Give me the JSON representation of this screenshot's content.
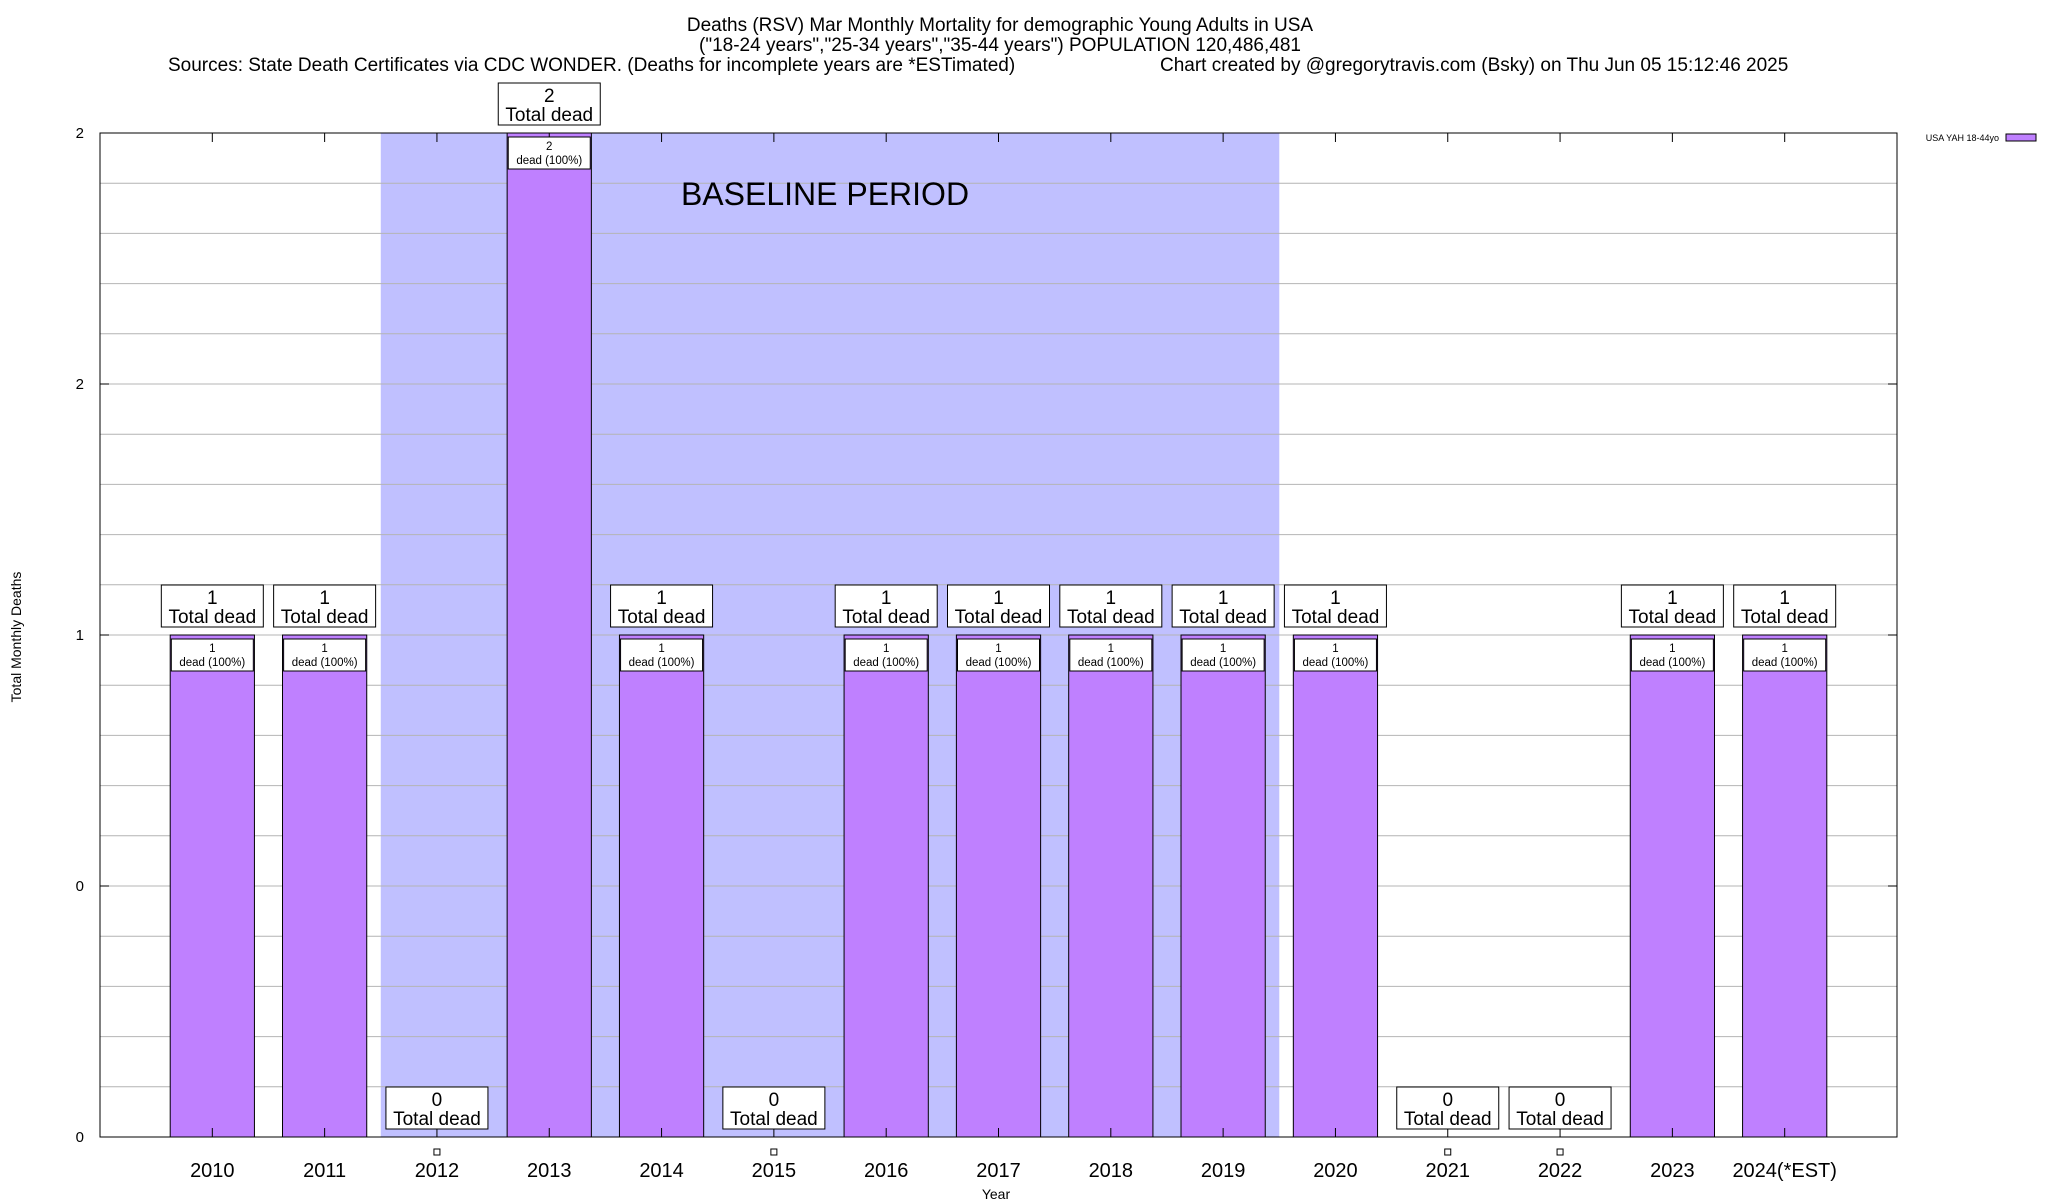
{
  "chart_data": {
    "type": "bar",
    "title_lines": [
      "Deaths (RSV) Mar Monthly Mortality for demographic Young Adults in USA",
      "(\"18-24 years\",\"25-34 years\",\"35-44 years\") POPULATION 120,486,481"
    ],
    "sources_text": "Sources: State Death Certificates via CDC WONDER. (Deaths for incomplete years are *ESTimated)",
    "credit_text": "Chart created by @gregorytravis.com (Bsky) on Thu Jun 05 15:12:46 2025",
    "xlabel": "Year",
    "ylabel": "Total Monthly Deaths",
    "categories": [
      "2010",
      "2011",
      "2012",
      "2013",
      "2014",
      "2015",
      "2016",
      "2017",
      "2018",
      "2019",
      "2020",
      "2021",
      "2022",
      "2023",
      "2024(*EST)"
    ],
    "series": [
      {
        "name": "USA YAH 18-44yo",
        "values": [
          1,
          1,
          0,
          2,
          1,
          0,
          1,
          1,
          1,
          1,
          1,
          0,
          0,
          1,
          1
        ],
        "color": "#bf80ff"
      }
    ],
    "ylim": [
      0,
      2
    ],
    "y_ticks": [
      0,
      0.5,
      1,
      1.5,
      2
    ],
    "y_tick_labels": [
      "0",
      "0",
      "1",
      "2",
      "2"
    ],
    "grid": true,
    "total_label_suffix": "Total dead",
    "inner_label_suffix": "dead (100%)",
    "baseline_period": {
      "label": "BASELINE PERIOD",
      "from": "2012",
      "to": "2019",
      "color": "#c0c0ff"
    },
    "legend_position": "top-right"
  }
}
